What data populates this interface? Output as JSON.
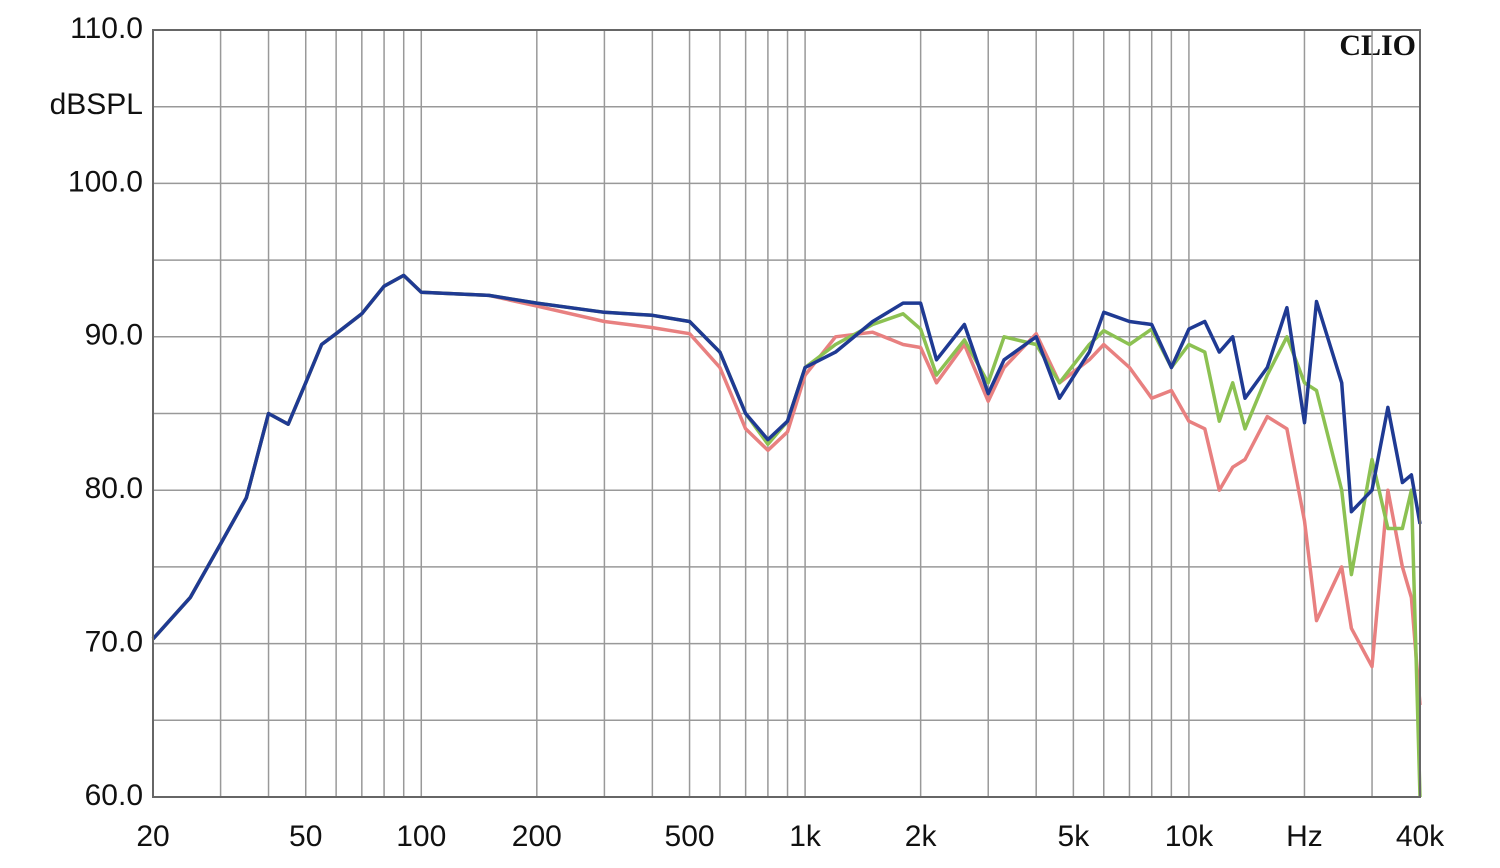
{
  "chart_data": {
    "type": "line",
    "ylabel": "dBSPL",
    "annotation": "CLIO",
    "log_x": true,
    "grid": true,
    "xlim": [
      20,
      40000
    ],
    "ylim": [
      60,
      110
    ],
    "xticks": [
      20,
      50,
      100,
      200,
      500,
      {
        "value": 1000,
        "label": "1k"
      },
      {
        "value": 2000,
        "label": "2k"
      },
      {
        "value": 5000,
        "label": "5k"
      },
      {
        "value": 10000,
        "label": "10k"
      },
      {
        "value": 20000,
        "label": "Hz"
      },
      {
        "value": 40000,
        "label": "40k"
      }
    ],
    "yticks": [
      {
        "value": 60,
        "label": "60.0"
      },
      {
        "value": 70,
        "label": "70.0"
      },
      {
        "value": 80,
        "label": "80.0"
      },
      {
        "value": 90,
        "label": "90.0"
      },
      {
        "value": 100,
        "label": "100.0"
      },
      {
        "value": 110,
        "label": "110.0"
      }
    ],
    "xminor": [
      30,
      40,
      60,
      70,
      80,
      90,
      300,
      400,
      600,
      700,
      800,
      900,
      3000,
      4000,
      6000,
      7000,
      8000,
      9000,
      30000
    ],
    "yminor": [
      65,
      75,
      85,
      95,
      105
    ],
    "x": [
      20,
      25,
      30,
      35,
      40,
      45,
      50,
      55,
      60,
      70,
      80,
      90,
      100,
      150,
      200,
      300,
      400,
      500,
      600,
      700,
      800,
      900,
      1000,
      1200,
      1500,
      1800,
      2000,
      2200,
      2600,
      3000,
      3300,
      4000,
      4600,
      5500,
      6000,
      7000,
      8000,
      9000,
      10000,
      11000,
      12000,
      13000,
      14000,
      16000,
      18000,
      20000,
      21500,
      25000,
      26500,
      30000,
      33000,
      36000,
      38000,
      40000
    ],
    "series": [
      {
        "color": "#e88080",
        "values": [
          70.3,
          73,
          76.5,
          79.5,
          85,
          84.3,
          87,
          89.5,
          90.2,
          91.5,
          93.3,
          94,
          92.9,
          92.7,
          92,
          91,
          90.6,
          90.2,
          88,
          84,
          82.6,
          83.8,
          87.5,
          90,
          90.3,
          89.5,
          89.3,
          87,
          89.5,
          85.8,
          88,
          90.2,
          87,
          88.5,
          89.5,
          88,
          86,
          86.5,
          84.5,
          84,
          80,
          81.5,
          82,
          84.8,
          84,
          78,
          71.5,
          75,
          71,
          68.5,
          80,
          75,
          73,
          66
        ]
      },
      {
        "color": "#8cc152",
        "values": [
          70.3,
          73,
          76.5,
          79.5,
          85,
          84.3,
          87,
          89.5,
          90.2,
          91.5,
          93.3,
          94,
          92.9,
          92.7,
          92.2,
          91.6,
          91.4,
          91,
          89,
          85,
          83,
          84.5,
          88,
          89.5,
          90.8,
          91.5,
          90.5,
          87.5,
          89.8,
          87,
          90,
          89.5,
          87,
          89.5,
          90.4,
          89.5,
          90.5,
          88,
          89.5,
          89,
          84.5,
          87,
          84,
          87.5,
          90,
          87,
          86.5,
          80,
          74.5,
          82,
          77.5,
          77.5,
          80,
          60
        ]
      },
      {
        "color": "#1f3a93",
        "values": [
          70.3,
          73,
          76.5,
          79.5,
          85,
          84.3,
          87,
          89.5,
          90.2,
          91.5,
          93.3,
          94,
          92.9,
          92.7,
          92.2,
          91.6,
          91.4,
          91,
          89,
          85,
          83.3,
          84.5,
          88,
          89,
          91,
          92.2,
          92.2,
          88.5,
          90.8,
          86.3,
          88.5,
          90,
          86,
          89,
          91.6,
          91,
          90.8,
          88,
          90.5,
          91,
          89,
          90,
          86,
          88,
          91.9,
          84.4,
          92.3,
          87,
          78.6,
          80,
          85.4,
          80.5,
          81,
          77.8
        ]
      }
    ]
  }
}
